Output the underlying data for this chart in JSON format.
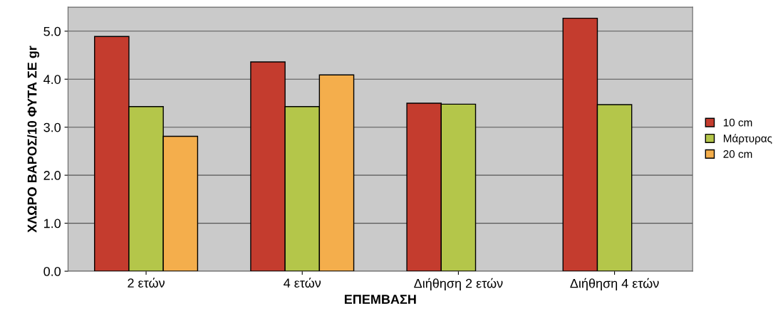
{
  "chart_data": {
    "type": "bar",
    "xlabel": "ΕΠΕΜΒΑΣΗ",
    "ylabel": "ΧΛΩΡΟ ΒΑΡΟΣ/10 ΦΥΤΑ ΣΕ gr",
    "categories": [
      "2 ετών",
      "4 ετών",
      "Διήθηση 2 ετών",
      "Διήθηση 4 ετών"
    ],
    "series": [
      {
        "name": "10 cm",
        "color": "#c43c2e",
        "values": [
          4.89,
          4.36,
          3.5,
          5.27
        ]
      },
      {
        "name": "Μάρτυρας",
        "color": "#b4c64a",
        "values": [
          3.43,
          3.43,
          3.48,
          3.47
        ]
      },
      {
        "name": "20 cm",
        "color": "#f4ae4c",
        "values": [
          2.81,
          4.09,
          null,
          null
        ]
      }
    ],
    "ylim": [
      0,
      5.5
    ],
    "yticks": [
      {
        "value": 0,
        "label": "0.0"
      },
      {
        "value": 1,
        "label": "1.0"
      },
      {
        "value": 2,
        "label": "2.0"
      },
      {
        "value": 3,
        "label": "3.0"
      },
      {
        "value": 4,
        "label": "4.0"
      },
      {
        "value": 5,
        "label": "5.0"
      }
    ],
    "grid": "y",
    "legend": "right"
  }
}
